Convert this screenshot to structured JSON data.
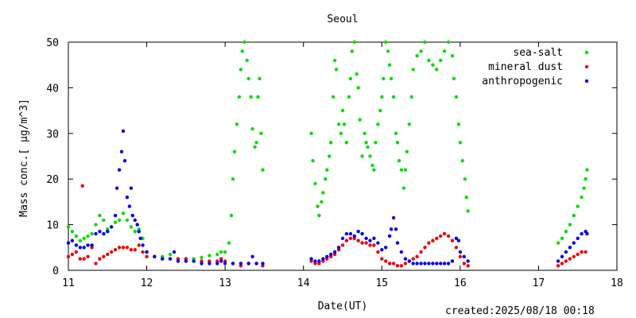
{
  "created_label": "created:2025/08/18 00:18",
  "chart_data": {
    "type": "scatter",
    "title": "Seoul",
    "xlabel": "Date(UT)",
    "ylabel": "Mass conc.[ μg/m^3]",
    "xlim": [
      11,
      18
    ],
    "ylim": [
      0,
      50
    ],
    "xticks": [
      "11",
      "12",
      "13",
      "14",
      "15",
      "16",
      "17",
      "18"
    ],
    "yticks": [
      "0",
      "10",
      "20",
      "30",
      "40",
      "50"
    ],
    "legend_position": "top-right",
    "series": [
      {
        "name": "sea-salt",
        "color": "#00dd00",
        "points": [
          [
            11.0,
            9.5
          ],
          [
            11.05,
            8.5
          ],
          [
            11.1,
            7.5
          ],
          [
            11.15,
            6.5
          ],
          [
            11.2,
            7.0
          ],
          [
            11.25,
            7.5
          ],
          [
            11.3,
            8.0
          ],
          [
            11.35,
            10.0
          ],
          [
            11.4,
            12.0
          ],
          [
            11.45,
            11.0
          ],
          [
            11.5,
            9.0
          ],
          [
            11.55,
            9.5
          ],
          [
            11.6,
            10.5
          ],
          [
            11.65,
            11.0
          ],
          [
            11.7,
            12.5
          ],
          [
            11.75,
            11.0
          ],
          [
            11.8,
            9.5
          ],
          [
            11.85,
            8.5
          ],
          [
            11.9,
            9.0
          ],
          [
            11.95,
            7.0
          ],
          [
            12.0,
            4.0
          ],
          [
            12.1,
            3.0
          ],
          [
            12.2,
            3.0
          ],
          [
            12.3,
            3.5
          ],
          [
            12.4,
            2.5
          ],
          [
            12.5,
            2.5
          ],
          [
            12.6,
            2.5
          ],
          [
            12.7,
            2.8
          ],
          [
            12.8,
            3.2
          ],
          [
            12.9,
            3.5
          ],
          [
            12.95,
            4.0
          ],
          [
            13.0,
            4.0
          ],
          [
            13.05,
            6.0
          ],
          [
            13.08,
            12.0
          ],
          [
            13.1,
            20.0
          ],
          [
            13.12,
            26.0
          ],
          [
            13.15,
            32.0
          ],
          [
            13.18,
            38.0
          ],
          [
            13.2,
            44.0
          ],
          [
            13.22,
            48.0
          ],
          [
            13.25,
            50.0
          ],
          [
            13.28,
            46.0
          ],
          [
            13.3,
            42.0
          ],
          [
            13.33,
            38.0
          ],
          [
            13.35,
            31.0
          ],
          [
            13.38,
            27.0
          ],
          [
            13.4,
            28.0
          ],
          [
            13.42,
            38.0
          ],
          [
            13.44,
            42.0
          ],
          [
            13.46,
            30.0
          ],
          [
            13.48,
            22.0
          ],
          [
            14.1,
            30.0
          ],
          [
            14.12,
            24.0
          ],
          [
            14.15,
            19.0
          ],
          [
            14.18,
            14.0
          ],
          [
            14.2,
            12.0
          ],
          [
            14.23,
            15.0
          ],
          [
            14.25,
            17.0
          ],
          [
            14.28,
            20.0
          ],
          [
            14.3,
            22.0
          ],
          [
            14.33,
            25.0
          ],
          [
            14.35,
            28.0
          ],
          [
            14.38,
            38.0
          ],
          [
            14.4,
            46.0
          ],
          [
            14.42,
            44.0
          ],
          [
            14.45,
            32.0
          ],
          [
            14.48,
            30.0
          ],
          [
            14.5,
            35.0
          ],
          [
            14.52,
            32.0
          ],
          [
            14.55,
            28.0
          ],
          [
            14.58,
            38.0
          ],
          [
            14.6,
            42.0
          ],
          [
            14.62,
            48.0
          ],
          [
            14.65,
            50.0
          ],
          [
            14.68,
            43.0
          ],
          [
            14.7,
            40.0
          ],
          [
            14.72,
            33.0
          ],
          [
            14.75,
            25.0
          ],
          [
            14.78,
            30.0
          ],
          [
            14.8,
            28.0
          ],
          [
            14.82,
            27.0
          ],
          [
            14.85,
            25.0
          ],
          [
            14.88,
            23.0
          ],
          [
            14.9,
            22.0
          ],
          [
            14.92,
            28.0
          ],
          [
            14.95,
            32.0
          ],
          [
            14.98,
            35.0
          ],
          [
            15.0,
            38.0
          ],
          [
            15.02,
            42.0
          ],
          [
            15.05,
            50.0
          ],
          [
            15.08,
            48.0
          ],
          [
            15.1,
            45.0
          ],
          [
            15.12,
            42.0
          ],
          [
            15.15,
            38.0
          ],
          [
            15.18,
            30.0
          ],
          [
            15.2,
            28.0
          ],
          [
            15.22,
            24.0
          ],
          [
            15.25,
            22.0
          ],
          [
            15.28,
            18.0
          ],
          [
            15.3,
            22.0
          ],
          [
            15.32,
            26.0
          ],
          [
            15.35,
            32.0
          ],
          [
            15.38,
            38.0
          ],
          [
            15.4,
            44.0
          ],
          [
            15.45,
            47.0
          ],
          [
            15.5,
            48.0
          ],
          [
            15.55,
            50.0
          ],
          [
            15.6,
            46.0
          ],
          [
            15.65,
            45.0
          ],
          [
            15.7,
            44.0
          ],
          [
            15.75,
            46.0
          ],
          [
            15.8,
            48.0
          ],
          [
            15.85,
            50.0
          ],
          [
            15.9,
            47.0
          ],
          [
            15.92,
            42.0
          ],
          [
            15.95,
            38.0
          ],
          [
            15.98,
            32.0
          ],
          [
            16.0,
            28.0
          ],
          [
            16.03,
            24.0
          ],
          [
            16.06,
            20.0
          ],
          [
            16.08,
            16.0
          ],
          [
            16.1,
            13.0
          ],
          [
            17.25,
            6.0
          ],
          [
            17.3,
            7.0
          ],
          [
            17.35,
            8.5
          ],
          [
            17.4,
            10.0
          ],
          [
            17.45,
            12.0
          ],
          [
            17.5,
            14.0
          ],
          [
            17.55,
            16.0
          ],
          [
            17.58,
            18.0
          ],
          [
            17.6,
            20.0
          ],
          [
            17.62,
            22.0
          ]
        ]
      },
      {
        "name": "mineral dust",
        "color": "#ee0000",
        "points": [
          [
            11.0,
            3.0
          ],
          [
            11.05,
            3.5
          ],
          [
            11.1,
            4.0
          ],
          [
            11.15,
            2.5
          ],
          [
            11.18,
            18.5
          ],
          [
            11.2,
            2.5
          ],
          [
            11.25,
            3.0
          ],
          [
            11.3,
            5.0
          ],
          [
            11.35,
            1.5
          ],
          [
            11.4,
            2.5
          ],
          [
            11.45,
            3.0
          ],
          [
            11.5,
            3.5
          ],
          [
            11.55,
            4.0
          ],
          [
            11.6,
            4.5
          ],
          [
            11.65,
            5.0
          ],
          [
            11.7,
            5.0
          ],
          [
            11.75,
            5.0
          ],
          [
            11.8,
            4.5
          ],
          [
            11.85,
            4.5
          ],
          [
            11.9,
            5.5
          ],
          [
            11.95,
            4.0
          ],
          [
            12.0,
            3.0
          ],
          [
            12.1,
            3.0
          ],
          [
            12.2,
            2.5
          ],
          [
            12.3,
            2.5
          ],
          [
            12.4,
            2.5
          ],
          [
            12.5,
            2.5
          ],
          [
            12.6,
            2.0
          ],
          [
            12.7,
            2.0
          ],
          [
            12.8,
            2.0
          ],
          [
            12.9,
            2.0
          ],
          [
            12.95,
            2.5
          ],
          [
            13.0,
            2.0
          ],
          [
            13.1,
            1.5
          ],
          [
            13.2,
            1.0
          ],
          [
            13.3,
            1.5
          ],
          [
            13.4,
            1.5
          ],
          [
            13.48,
            1.0
          ],
          [
            14.1,
            2.0
          ],
          [
            14.15,
            1.5
          ],
          [
            14.2,
            1.5
          ],
          [
            14.25,
            2.0
          ],
          [
            14.3,
            2.5
          ],
          [
            14.35,
            3.0
          ],
          [
            14.4,
            3.5
          ],
          [
            14.45,
            4.5
          ],
          [
            14.5,
            5.5
          ],
          [
            14.55,
            6.5
          ],
          [
            14.6,
            7.0
          ],
          [
            14.65,
            7.0
          ],
          [
            14.7,
            6.5
          ],
          [
            14.75,
            6.0
          ],
          [
            14.8,
            6.0
          ],
          [
            14.85,
            5.5
          ],
          [
            14.9,
            5.5
          ],
          [
            14.95,
            4.0
          ],
          [
            15.0,
            2.5
          ],
          [
            15.05,
            2.0
          ],
          [
            15.1,
            1.5
          ],
          [
            15.15,
            1.5
          ],
          [
            15.2,
            1.0
          ],
          [
            15.25,
            1.0
          ],
          [
            15.3,
            1.5
          ],
          [
            15.35,
            2.0
          ],
          [
            15.4,
            2.5
          ],
          [
            15.45,
            3.0
          ],
          [
            15.5,
            4.0
          ],
          [
            15.55,
            5.0
          ],
          [
            15.6,
            6.0
          ],
          [
            15.65,
            6.5
          ],
          [
            15.7,
            7.0
          ],
          [
            15.75,
            7.5
          ],
          [
            15.8,
            8.0
          ],
          [
            15.85,
            7.5
          ],
          [
            15.9,
            6.5
          ],
          [
            15.95,
            5.0
          ],
          [
            16.0,
            3.0
          ],
          [
            16.05,
            1.5
          ],
          [
            16.1,
            1.0
          ],
          [
            17.25,
            1.0
          ],
          [
            17.3,
            1.5
          ],
          [
            17.35,
            2.0
          ],
          [
            17.4,
            2.5
          ],
          [
            17.45,
            3.0
          ],
          [
            17.5,
            3.5
          ],
          [
            17.55,
            4.0
          ],
          [
            17.6,
            4.0
          ]
        ]
      },
      {
        "name": "anthropogenic",
        "color": "#0000ee",
        "points": [
          [
            11.0,
            6.0
          ],
          [
            11.05,
            6.5
          ],
          [
            11.1,
            5.5
          ],
          [
            11.15,
            5.0
          ],
          [
            11.2,
            5.0
          ],
          [
            11.25,
            5.5
          ],
          [
            11.3,
            5.5
          ],
          [
            11.35,
            8.0
          ],
          [
            11.4,
            8.5
          ],
          [
            11.45,
            8.0
          ],
          [
            11.5,
            8.5
          ],
          [
            11.55,
            9.5
          ],
          [
            11.6,
            12.0
          ],
          [
            11.62,
            18.0
          ],
          [
            11.65,
            22.0
          ],
          [
            11.68,
            26.0
          ],
          [
            11.7,
            30.5
          ],
          [
            11.72,
            24.0
          ],
          [
            11.75,
            16.0
          ],
          [
            11.78,
            14.0
          ],
          [
            11.8,
            18.0
          ],
          [
            11.82,
            12.0
          ],
          [
            11.85,
            11.0
          ],
          [
            11.88,
            10.0
          ],
          [
            11.9,
            8.5
          ],
          [
            11.92,
            7.0
          ],
          [
            11.95,
            5.5
          ],
          [
            12.0,
            4.0
          ],
          [
            12.1,
            3.0
          ],
          [
            12.2,
            2.5
          ],
          [
            12.3,
            2.5
          ],
          [
            12.35,
            4.0
          ],
          [
            12.4,
            2.0
          ],
          [
            12.5,
            2.0
          ],
          [
            12.6,
            2.0
          ],
          [
            12.7,
            1.5
          ],
          [
            12.8,
            1.5
          ],
          [
            12.9,
            1.5
          ],
          [
            12.95,
            2.0
          ],
          [
            13.0,
            1.5
          ],
          [
            13.1,
            1.5
          ],
          [
            13.2,
            1.5
          ],
          [
            13.3,
            1.5
          ],
          [
            13.35,
            3.0
          ],
          [
            13.4,
            1.5
          ],
          [
            13.48,
            1.5
          ],
          [
            14.1,
            2.5
          ],
          [
            14.15,
            2.0
          ],
          [
            14.2,
            2.0
          ],
          [
            14.25,
            2.5
          ],
          [
            14.3,
            3.0
          ],
          [
            14.35,
            3.5
          ],
          [
            14.4,
            4.0
          ],
          [
            14.45,
            5.0
          ],
          [
            14.5,
            7.0
          ],
          [
            14.55,
            8.0
          ],
          [
            14.6,
            8.0
          ],
          [
            14.65,
            7.5
          ],
          [
            14.7,
            8.5
          ],
          [
            14.75,
            8.0
          ],
          [
            14.8,
            7.0
          ],
          [
            14.85,
            6.5
          ],
          [
            14.9,
            7.0
          ],
          [
            14.95,
            6.0
          ],
          [
            15.0,
            4.5
          ],
          [
            15.05,
            5.0
          ],
          [
            15.1,
            7.5
          ],
          [
            15.12,
            9.0
          ],
          [
            15.15,
            11.5
          ],
          [
            15.18,
            9.0
          ],
          [
            15.2,
            6.0
          ],
          [
            15.25,
            4.0
          ],
          [
            15.3,
            2.5
          ],
          [
            15.35,
            2.0
          ],
          [
            15.4,
            1.5
          ],
          [
            15.45,
            1.5
          ],
          [
            15.5,
            1.5
          ],
          [
            15.55,
            1.5
          ],
          [
            15.6,
            1.5
          ],
          [
            15.65,
            1.5
          ],
          [
            15.7,
            1.5
          ],
          [
            15.75,
            1.5
          ],
          [
            15.8,
            1.5
          ],
          [
            15.85,
            1.5
          ],
          [
            15.9,
            2.0
          ],
          [
            15.95,
            7.0
          ],
          [
            15.98,
            6.5
          ],
          [
            16.0,
            4.0
          ],
          [
            16.05,
            3.0
          ],
          [
            16.1,
            2.0
          ],
          [
            17.25,
            2.0
          ],
          [
            17.3,
            3.0
          ],
          [
            17.35,
            4.0
          ],
          [
            17.4,
            5.0
          ],
          [
            17.45,
            6.0
          ],
          [
            17.5,
            7.0
          ],
          [
            17.55,
            8.0
          ],
          [
            17.6,
            8.5
          ],
          [
            17.62,
            8.0
          ]
        ]
      }
    ]
  }
}
